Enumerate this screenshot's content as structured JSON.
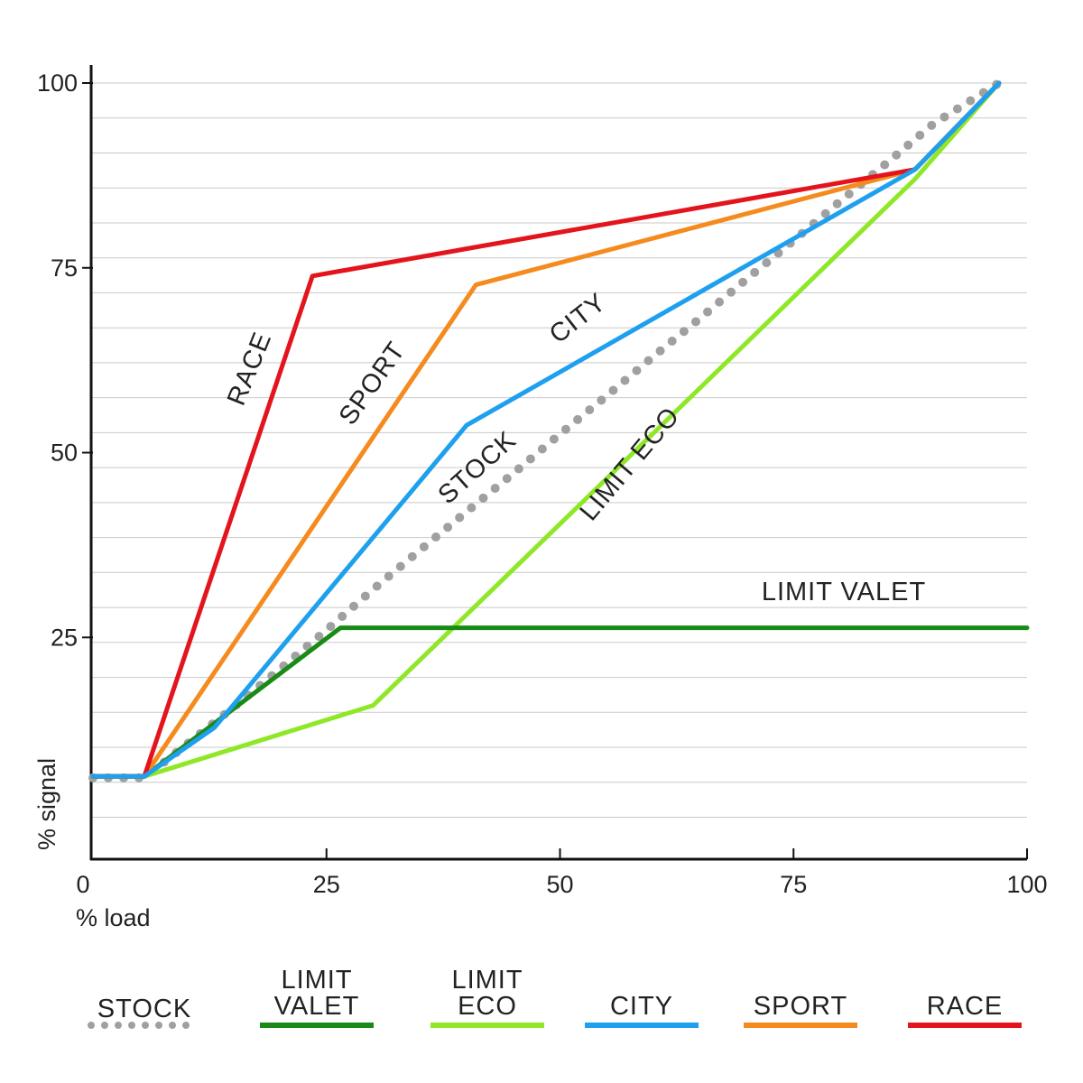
{
  "chart_data": {
    "type": "line",
    "xlabel": "% load",
    "ylabel": "% signal",
    "xlim": [
      0,
      100
    ],
    "ylim": [
      -5,
      100
    ],
    "xticks": [
      0,
      25,
      50,
      75,
      100
    ],
    "yticks": [
      25,
      50,
      75,
      100
    ],
    "grid": "horizontal",
    "legend_position": "bottom",
    "series": [
      {
        "name": "STOCK",
        "label_text": "STOCK",
        "legend_lines": [
          "STOCK"
        ],
        "color": "#a0a0a0",
        "style": "dotted",
        "points": [
          [
            0,
            6
          ],
          [
            5.5,
            6
          ],
          [
            10,
            10.5
          ],
          [
            15,
            15.5
          ],
          [
            20,
            20.7
          ],
          [
            25,
            26
          ],
          [
            30,
            31.5
          ],
          [
            35,
            36.8
          ],
          [
            40,
            42
          ],
          [
            45,
            47.2
          ],
          [
            50,
            52.5
          ],
          [
            55,
            57.7
          ],
          [
            60,
            63
          ],
          [
            65,
            68.2
          ],
          [
            70,
            73.5
          ],
          [
            75,
            78.7
          ],
          [
            80,
            84
          ],
          [
            85,
            89.2
          ],
          [
            90,
            94.5
          ],
          [
            97,
            100
          ]
        ]
      },
      {
        "name": "LIMIT VALET",
        "label_text": "LIMIT VALET",
        "legend_lines": [
          "LIMIT",
          "VALET"
        ],
        "color": "#1a8a16",
        "style": "solid",
        "points": [
          [
            0,
            6.2
          ],
          [
            5.5,
            6.2
          ],
          [
            26.5,
            26.3
          ],
          [
            100,
            26.3
          ]
        ]
      },
      {
        "name": "LIMIT ECO",
        "label_text": "LIMIT ECO",
        "legend_lines": [
          "LIMIT",
          "ECO"
        ],
        "color": "#8ee827",
        "style": "solid",
        "points": [
          [
            0,
            6.2
          ],
          [
            5.5,
            6.2
          ],
          [
            30,
            15.8
          ],
          [
            88,
            87
          ],
          [
            97,
            100
          ]
        ]
      },
      {
        "name": "CITY",
        "label_text": "CITY",
        "legend_lines": [
          "CITY"
        ],
        "color": "#1ea0ee",
        "style": "solid",
        "points": [
          [
            0,
            6.2
          ],
          [
            5.5,
            6.2
          ],
          [
            13,
            12.8
          ],
          [
            40,
            53.7
          ],
          [
            88,
            88.3
          ],
          [
            97,
            100
          ]
        ]
      },
      {
        "name": "SPORT",
        "label_text": "SPORT",
        "legend_lines": [
          "SPORT"
        ],
        "color": "#f58b1e",
        "style": "solid",
        "points": [
          [
            0,
            6.2
          ],
          [
            5.5,
            6.2
          ],
          [
            41,
            72.7
          ],
          [
            88,
            88.3
          ],
          [
            97,
            100
          ]
        ]
      },
      {
        "name": "RACE",
        "label_text": "RACE",
        "legend_lines": [
          "RACE"
        ],
        "color": "#e4141c",
        "style": "solid",
        "points": [
          [
            0,
            6.2
          ],
          [
            5.5,
            6.2
          ],
          [
            23.5,
            73.9
          ],
          [
            88,
            88.3
          ],
          [
            97,
            100
          ]
        ]
      }
    ]
  }
}
